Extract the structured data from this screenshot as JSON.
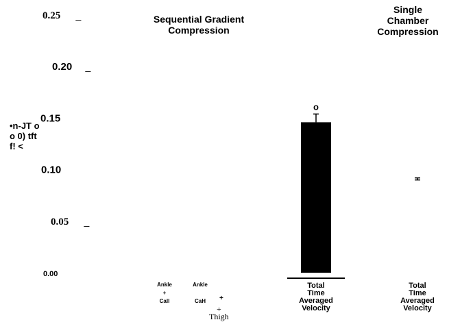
{
  "chart_data": {
    "type": "bar",
    "title": "Sequential Gradient Compression",
    "secondary_title": "Single Chamber Compression",
    "ylabel": "•n-JT o o 0) tft f! <",
    "ylim": [
      0,
      0.25
    ],
    "yticks": [
      {
        "value": 0.25,
        "label": "0.25",
        "suffix": "_"
      },
      {
        "value": 0.2,
        "label": "0.20",
        "suffix": "_"
      },
      {
        "value": 0.15,
        "label": "0.15",
        "suffix": ""
      },
      {
        "value": 0.1,
        "label": "0.10",
        "suffix": ""
      },
      {
        "value": 0.05,
        "label": "0.05",
        "suffix": "_"
      },
      {
        "value": 0.0,
        "label": "0.00",
        "suffix": ""
      }
    ],
    "categories": [
      {
        "lines": [
          "Ankle",
          "+",
          "Call"
        ]
      },
      {
        "lines": [
          "Ankle",
          "",
          "CaH"
        ]
      },
      {
        "lines": [
          "Total",
          "Time",
          "Averaged",
          "Velocity"
        ]
      },
      {
        "lines": [
          "Total",
          "Time",
          "Averaged",
          "Velocity"
        ]
      }
    ],
    "extra_labels": {
      "plus": "+",
      "thigh_plus": "+",
      "thigh": "Thigh"
    },
    "values": [
      null,
      null,
      0.146,
      null
    ],
    "error_bars": [
      null,
      null,
      0.008,
      0.002
    ],
    "bar_annotation": "o",
    "colors": {
      "bar": "#000000",
      "text": "#000000",
      "background": "#ffffff"
    }
  }
}
